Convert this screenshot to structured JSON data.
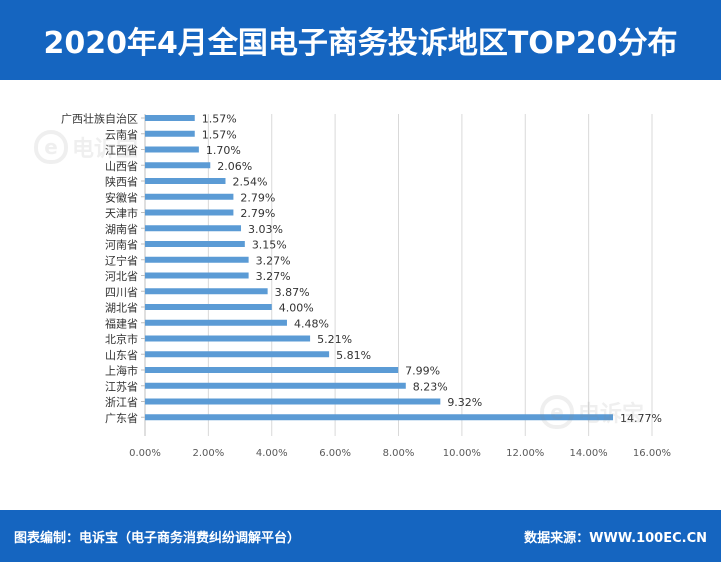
{
  "header": {
    "title": "2020年4月全国电子商务投诉地区TOP20分布"
  },
  "watermark": {
    "text": "电诉宝"
  },
  "footer": {
    "left": "图表编制：电诉宝（电子商务消费纠纷调解平台）",
    "right": "数据来源：WWW.100EC.CN"
  },
  "colors": {
    "bar": "#5b9bd5",
    "brand": "#1565c0",
    "grid": "#d9d9d9"
  },
  "chart_data": {
    "type": "bar",
    "orientation": "horizontal",
    "categories": [
      "广西壮族自治区",
      "云南省",
      "江西省",
      "山西省",
      "陕西省",
      "安徽省",
      "天津市",
      "湖南省",
      "河南省",
      "辽宁省",
      "河北省",
      "四川省",
      "湖北省",
      "福建省",
      "北京市",
      "山东省",
      "上海市",
      "江苏省",
      "浙江省",
      "广东省"
    ],
    "values": [
      1.57,
      1.57,
      1.7,
      2.06,
      2.54,
      2.79,
      2.79,
      3.03,
      3.15,
      3.27,
      3.27,
      3.87,
      4.0,
      4.48,
      5.21,
      5.81,
      7.99,
      8.23,
      9.32,
      14.77
    ],
    "labels": [
      "1.57%",
      "1.57%",
      "1.70%",
      "2.06%",
      "2.54%",
      "2.79%",
      "2.79%",
      "3.03%",
      "3.15%",
      "3.27%",
      "3.27%",
      "3.87%",
      "4.00%",
      "4.48%",
      "5.21%",
      "5.81%",
      "7.99%",
      "8.23%",
      "9.32%",
      "14.77%"
    ],
    "xticks": [
      "0.00%",
      "2.00%",
      "4.00%",
      "6.00%",
      "8.00%",
      "10.00%",
      "12.00%",
      "14.00%",
      "16.00%"
    ],
    "xlim": [
      0,
      16
    ],
    "grid": true,
    "legend": false
  }
}
